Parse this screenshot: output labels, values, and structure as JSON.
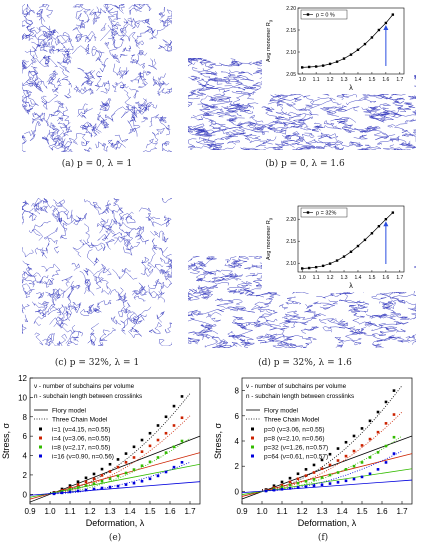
{
  "captions": {
    "a": "(a)  p = 0, λ = 1",
    "b": "(b)  p = 0, λ = 1.6",
    "c": "(c)  p = 32%, λ = 1",
    "d": "(d)  p = 32%, λ = 1.6",
    "e": "(e)",
    "f": "(f)"
  },
  "colors": {
    "network": "#3b3fbf",
    "s1": "#000000",
    "s2": "#cc2200",
    "s3": "#33bb00",
    "s4": "#0000dd"
  },
  "chart_data": [
    {
      "type": "line",
      "id": "inset-b",
      "legend": "p = 0 %",
      "ylabel": "Avg monomer R",
      "ylabel_sub": "g",
      "xlabel": "λ",
      "xticks": [
        "1.0",
        "1.1",
        "1.2",
        "1.3",
        "1.4",
        "1.5",
        "1.6",
        "1.7"
      ],
      "yticks": [
        "2.05",
        "2.10",
        "2.15",
        "2.20"
      ],
      "xlim": [
        0.97,
        1.73
      ],
      "ylim": [
        2.05,
        2.2
      ],
      "x": [
        1.0,
        1.05,
        1.1,
        1.15,
        1.2,
        1.25,
        1.3,
        1.35,
        1.4,
        1.45,
        1.5,
        1.55,
        1.6,
        1.65
      ],
      "y": [
        2.065,
        2.066,
        2.067,
        2.069,
        2.073,
        2.078,
        2.085,
        2.094,
        2.105,
        2.118,
        2.133,
        2.15,
        2.166,
        2.185
      ],
      "arrow_x": 1.6
    },
    {
      "type": "line",
      "id": "inset-d",
      "legend": "p = 32%",
      "ylabel": "Avg monomer R",
      "ylabel_sub": "g",
      "xlabel": "λ",
      "xticks": [
        "1.0",
        "1.1",
        "1.2",
        "1.3",
        "1.4",
        "1.5",
        "1.6",
        "1.7"
      ],
      "yticks": [
        "2.10",
        "2.15",
        "2.20"
      ],
      "xlim": [
        0.97,
        1.73
      ],
      "ylim": [
        2.08,
        2.23
      ],
      "x": [
        1.0,
        1.05,
        1.1,
        1.15,
        1.2,
        1.25,
        1.3,
        1.35,
        1.4,
        1.45,
        1.5,
        1.55,
        1.6,
        1.65
      ],
      "y": [
        2.088,
        2.089,
        2.091,
        2.094,
        2.099,
        2.106,
        2.115,
        2.126,
        2.139,
        2.153,
        2.168,
        2.184,
        2.2,
        2.215
      ],
      "arrow_x": 1.6
    },
    {
      "type": "scatter",
      "id": "chart-e",
      "notes": [
        "ν - number of subchains per volume",
        "n - subchain length between crosslinks"
      ],
      "model_labels": [
        "Flory model",
        "Three Chain Model"
      ],
      "xlabel": "Deformation, λ",
      "ylabel": "Stress, σ",
      "xlim": [
        0.9,
        1.75
      ],
      "ylim": [
        -1,
        12
      ],
      "xticks": [
        "0.9",
        "1.0",
        "1.1",
        "1.2",
        "1.3",
        "1.4",
        "1.5",
        "1.6",
        "1.7"
      ],
      "yticks": [
        "0",
        "2",
        "4",
        "6",
        "8",
        "10",
        "12"
      ],
      "x": [
        1.02,
        1.06,
        1.1,
        1.14,
        1.18,
        1.22,
        1.26,
        1.3,
        1.34,
        1.38,
        1.42,
        1.46,
        1.5,
        1.54,
        1.58,
        1.62,
        1.66
      ],
      "series": [
        {
          "name": "i=1 (ν=4.15, n=0.55)",
          "color": "#000000",
          "values": [
            0.2,
            0.55,
            0.9,
            1.3,
            1.7,
            2.1,
            2.6,
            3.1,
            3.6,
            4.2,
            4.9,
            5.6,
            6.3,
            7.1,
            8.0,
            9.1,
            10.1
          ],
          "flory": [
            -0.8,
            6.0
          ],
          "chain": [
            0.2,
            10.4
          ]
        },
        {
          "name": "i=4 (ν=3.06, n=0.55)",
          "color": "#cc2200",
          "values": [
            0.15,
            0.4,
            0.7,
            1.0,
            1.3,
            1.6,
            1.95,
            2.35,
            2.8,
            3.3,
            3.8,
            4.4,
            5.0,
            5.6,
            6.3,
            7.1,
            7.9
          ],
          "flory": [
            -0.5,
            4.3
          ],
          "chain": [
            0.15,
            8.1
          ]
        },
        {
          "name": "i=8 (ν=2.17, n=0.55)",
          "color": "#33bb00",
          "values": [
            0.1,
            0.3,
            0.5,
            0.7,
            0.9,
            1.1,
            1.35,
            1.6,
            1.9,
            2.2,
            2.55,
            2.95,
            3.35,
            3.8,
            4.3,
            4.9,
            5.5
          ],
          "flory": [
            -0.3,
            3.1
          ],
          "chain": [
            0.1,
            5.8
          ]
        },
        {
          "name": "i=16 (ν=0.90, n=0.56)",
          "color": "#0000dd",
          "values": [
            0.05,
            0.15,
            0.25,
            0.35,
            0.45,
            0.55,
            0.65,
            0.75,
            0.85,
            1.0,
            1.15,
            1.35,
            1.6,
            1.9,
            2.3,
            2.8,
            3.3
          ],
          "flory": [
            -0.1,
            1.3
          ],
          "chain": [
            0.05,
            3.3
          ]
        }
      ]
    },
    {
      "type": "scatter",
      "id": "chart-f",
      "notes": [
        "ν - number of subchains per volume",
        "n - subchain length between crosslinks"
      ],
      "model_labels": [
        "Flory model",
        "Three Chain Model"
      ],
      "xlabel": "Deformation, λ",
      "ylabel": "Stress, σ",
      "xlim": [
        0.9,
        1.75
      ],
      "ylim": [
        -1,
        9
      ],
      "xticks": [
        "0.9",
        "1.0",
        "1.1",
        "1.2",
        "1.3",
        "1.4",
        "1.5",
        "1.6",
        "1.7"
      ],
      "yticks": [
        "0",
        "2",
        "4",
        "6",
        "8"
      ],
      "x": [
        1.02,
        1.06,
        1.1,
        1.14,
        1.18,
        1.22,
        1.26,
        1.3,
        1.34,
        1.38,
        1.42,
        1.46,
        1.5,
        1.54,
        1.58,
        1.62,
        1.66
      ],
      "series": [
        {
          "name": "p=0 (ν=3.06, n=0.55)",
          "color": "#000000",
          "values": [
            0.15,
            0.45,
            0.75,
            1.05,
            1.4,
            1.75,
            2.1,
            2.5,
            2.95,
            3.4,
            3.9,
            4.4,
            5.0,
            5.6,
            6.3,
            7.1,
            8.0
          ],
          "flory": [
            -0.6,
            4.4
          ],
          "chain": [
            0.15,
            8.4
          ]
        },
        {
          "name": "p=8 (ν=2.10, n=0.56)",
          "color": "#cc2200",
          "values": [
            0.1,
            0.3,
            0.5,
            0.75,
            1.0,
            1.25,
            1.5,
            1.8,
            2.1,
            2.45,
            2.8,
            3.2,
            3.65,
            4.15,
            4.7,
            5.4,
            6.1
          ],
          "flory": [
            -0.4,
            3.0
          ],
          "chain": [
            0.1,
            6.3
          ]
        },
        {
          "name": "p=32 (ν=1.26, n=0.57)",
          "color": "#33bb00",
          "values": [
            0.05,
            0.2,
            0.35,
            0.5,
            0.65,
            0.8,
            0.95,
            1.1,
            1.3,
            1.5,
            1.75,
            2.0,
            2.3,
            2.7,
            3.1,
            3.6,
            4.3
          ],
          "flory": [
            -0.25,
            1.8
          ],
          "chain": [
            0.05,
            4.4
          ]
        },
        {
          "name": "p=64 (ν=0.61, n=0.57)",
          "color": "#0000dd",
          "values": [
            0.03,
            0.1,
            0.17,
            0.24,
            0.31,
            0.38,
            0.45,
            0.53,
            0.62,
            0.72,
            0.84,
            0.98,
            1.15,
            1.4,
            1.75,
            2.3,
            3.0
          ],
          "flory": [
            -0.1,
            0.9
          ],
          "chain": [
            0.03,
            3.2
          ]
        }
      ]
    }
  ]
}
